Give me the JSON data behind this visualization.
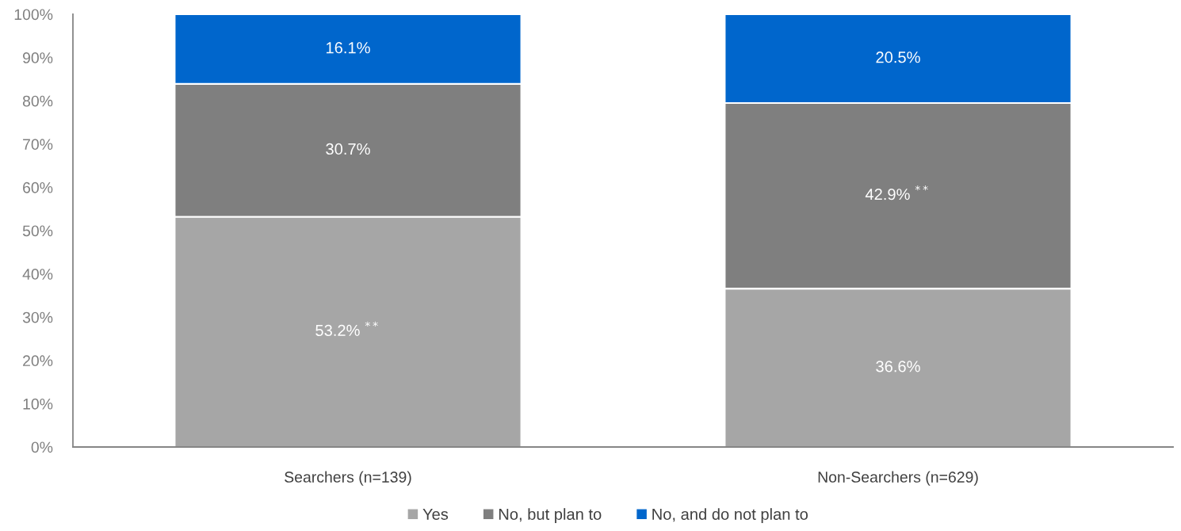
{
  "chart_data": {
    "type": "bar",
    "stacked": true,
    "categories": [
      "Searchers (n=139)",
      "Non-Searchers (n=629)"
    ],
    "series": [
      {
        "name": "Yes",
        "color": "#a6a6a6",
        "values": [
          53.2,
          36.6
        ],
        "value_labels": [
          "53.2% $^{**}$",
          "36.6%"
        ]
      },
      {
        "name": "No, but plan to",
        "color": "#7f7f7f",
        "values": [
          30.7,
          42.9
        ],
        "value_labels": [
          "30.7%",
          "42.9% $^{**}$"
        ]
      },
      {
        "name": "No, and do not plan to",
        "color": "#0066cc",
        "values": [
          16.1,
          20.5
        ],
        "value_labels": [
          "16.1%",
          "20.5%"
        ]
      }
    ],
    "ylim": [
      0,
      100
    ],
    "yticks": [
      {
        "value": 0,
        "label": "0%"
      },
      {
        "value": 10,
        "label": "10%"
      },
      {
        "value": 20,
        "label": "20%"
      },
      {
        "value": 30,
        "label": "30%"
      },
      {
        "value": 40,
        "label": "40%"
      },
      {
        "value": 50,
        "label": "50%"
      },
      {
        "value": 60,
        "label": "60%"
      },
      {
        "value": 70,
        "label": "70%"
      },
      {
        "value": 80,
        "label": "80%"
      },
      {
        "value": 90,
        "label": "90%"
      },
      {
        "value": 100,
        "label": "100%"
      }
    ],
    "grid": false,
    "legend": "bottom"
  }
}
